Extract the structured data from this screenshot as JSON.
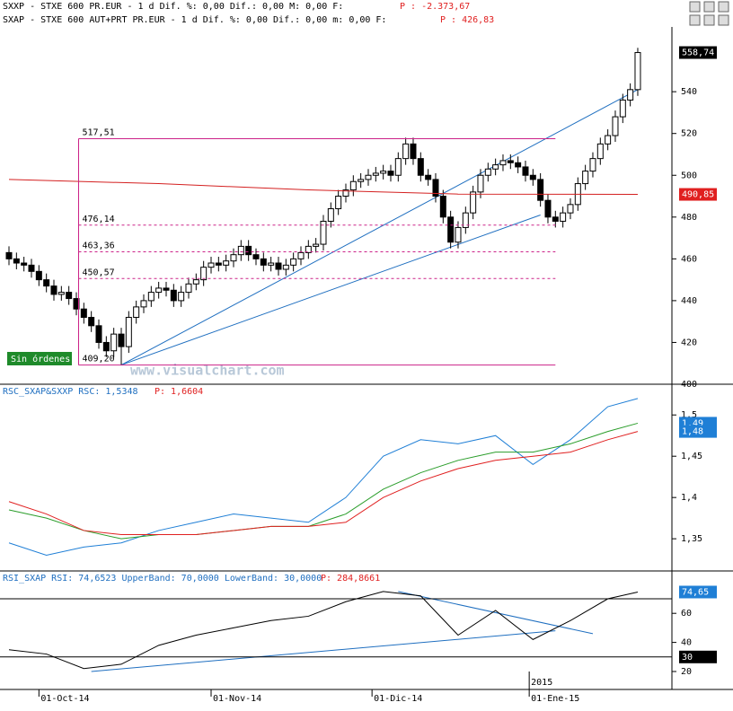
{
  "header": {
    "line1": "SXXP - STXE 600 PR.EUR -   1 d Dif. %: 0,00 Dif.: 0,00 M: 0,00 F:",
    "line1_p": "P : -2.373,67",
    "line2": "SXAP - STXE 600 AUT+PRT PR.EUR -   1 d Dif. %: 0,00 Dif.: 0,00 m: 0,00 F:",
    "line2_p": "P : 426,83"
  },
  "watermark": "www.visualchart.com",
  "status": "Sin órdenes",
  "chart_data": [
    {
      "type": "candlestick",
      "open": [
        463,
        460,
        458,
        457,
        454,
        450,
        447,
        443,
        444,
        441,
        436,
        432,
        428,
        420,
        416,
        424,
        418,
        432,
        437,
        440,
        444,
        446,
        445,
        440,
        444,
        448,
        450,
        456,
        458,
        457,
        459,
        462,
        466,
        462,
        460,
        457,
        458,
        455,
        457,
        460,
        463,
        466,
        467,
        478,
        484,
        490,
        493,
        497,
        498,
        500,
        501,
        502,
        500,
        508,
        515,
        508,
        500,
        498,
        490,
        480,
        468,
        475,
        482,
        492,
        500,
        503,
        505,
        507,
        506,
        504,
        500,
        498,
        488,
        480,
        478,
        482,
        486,
        496,
        502,
        508,
        515,
        519,
        528,
        536,
        541
      ],
      "high": [
        466,
        463,
        461,
        460,
        457,
        453,
        450,
        447,
        447,
        444,
        439,
        435,
        431,
        423,
        427,
        427,
        435,
        440,
        443,
        447,
        449,
        449,
        448,
        447,
        451,
        453,
        459,
        461,
        461,
        462,
        465,
        469,
        469,
        465,
        463,
        461,
        461,
        460,
        463,
        466,
        469,
        470,
        481,
        487,
        493,
        496,
        500,
        501,
        503,
        504,
        505,
        505,
        511,
        518,
        518,
        511,
        503,
        501,
        493,
        483,
        478,
        485,
        495,
        503,
        506,
        508,
        510,
        510,
        509,
        507,
        503,
        501,
        491,
        483,
        485,
        489,
        499,
        505,
        511,
        518,
        522,
        531,
        539,
        544,
        561
      ],
      "low": [
        457,
        455,
        454,
        451,
        447,
        444,
        440,
        440,
        438,
        433,
        429,
        425,
        417,
        413,
        413,
        409.2,
        415,
        429,
        434,
        437,
        441,
        442,
        437,
        437,
        441,
        445,
        447,
        453,
        454,
        454,
        456,
        459,
        459,
        457,
        454,
        454,
        452,
        452,
        454,
        457,
        460,
        463,
        464,
        475,
        481,
        487,
        490,
        494,
        495,
        497,
        498,
        497,
        497,
        505,
        505,
        497,
        495,
        487,
        477,
        465,
        465,
        472,
        479,
        489,
        497,
        500,
        502,
        503,
        501,
        497,
        495,
        485,
        477,
        475,
        475,
        479,
        483,
        493,
        499,
        505,
        512,
        516,
        525,
        533,
        538
      ],
      "close": [
        460,
        458,
        457,
        454,
        450,
        447,
        443,
        444,
        441,
        436,
        432,
        428,
        420,
        416,
        424,
        418,
        432,
        437,
        440,
        444,
        446,
        445,
        440,
        444,
        448,
        450,
        456,
        458,
        457,
        459,
        462,
        466,
        462,
        460,
        457,
        458,
        455,
        457,
        460,
        463,
        466,
        467,
        478,
        484,
        490,
        493,
        497,
        498,
        500,
        501,
        502,
        500,
        508,
        515,
        508,
        500,
        498,
        490,
        480,
        468,
        475,
        482,
        492,
        500,
        503,
        505,
        507,
        506,
        504,
        500,
        498,
        488,
        480,
        478,
        482,
        486,
        496,
        502,
        508,
        515,
        519,
        528,
        536,
        541,
        558.74
      ],
      "ylim": [
        400,
        571
      ],
      "yticks": [
        400,
        420,
        440,
        460,
        480,
        500,
        520,
        540
      ],
      "ma": {
        "x": [
          0,
          20,
          40,
          60,
          84
        ],
        "values": [
          498,
          496,
          493,
          491,
          490.85
        ],
        "color": "#d42020"
      },
      "trendlines": [
        {
          "x": [
            15,
            84
          ],
          "y": [
            409.2,
            541
          ],
          "color": "#1f6fc0"
        },
        {
          "x": [
            15,
            71
          ],
          "y": [
            409.2,
            481
          ],
          "color": "#1f6fc0"
        }
      ],
      "box": {
        "x": [
          9.3,
          73
        ],
        "color": "#cc2288"
      },
      "levels": [
        {
          "value": 517.51,
          "label": "517,51",
          "style": "solid"
        },
        {
          "value": 476.14,
          "label": "476,14",
          "style": "dashed"
        },
        {
          "value": 463.36,
          "label": "463,36",
          "style": "dashed"
        },
        {
          "value": 450.57,
          "label": "450,57",
          "style": "dashed"
        },
        {
          "value": 409.2,
          "label": "409,20",
          "style": "solid"
        }
      ],
      "markers": [
        {
          "value": 558.74,
          "label": "558,74",
          "color": "#000000"
        },
        {
          "value": 490.85,
          "label": "490,85",
          "color": "#e02020"
        }
      ]
    },
    {
      "type": "line",
      "title": "RSC_SXAP&SXXP RSC: 1,5348",
      "title_p": "P: 1,6604",
      "x": [
        0,
        5,
        10,
        15,
        20,
        25,
        30,
        35,
        40,
        45,
        50,
        55,
        60,
        65,
        70,
        75,
        80,
        84
      ],
      "series": [
        {
          "color": "#1f7fd6",
          "values": [
            1.345,
            1.33,
            1.34,
            1.345,
            1.36,
            1.37,
            1.38,
            1.375,
            1.37,
            1.4,
            1.45,
            1.47,
            1.465,
            1.475,
            1.44,
            1.47,
            1.51,
            1.52
          ]
        },
        {
          "color": "#2a9d2a",
          "values": [
            1.385,
            1.375,
            1.36,
            1.35,
            1.355,
            1.355,
            1.36,
            1.365,
            1.365,
            1.38,
            1.41,
            1.43,
            1.445,
            1.455,
            1.455,
            1.465,
            1.48,
            1.49
          ]
        },
        {
          "color": "#e02020",
          "values": [
            1.395,
            1.38,
            1.36,
            1.355,
            1.355,
            1.355,
            1.36,
            1.365,
            1.365,
            1.37,
            1.4,
            1.42,
            1.435,
            1.445,
            1.45,
            1.455,
            1.47,
            1.48
          ]
        }
      ],
      "ylim": [
        1.311,
        1.522
      ],
      "yticks": [
        {
          "value": 1.35,
          "label": "1,35"
        },
        {
          "value": 1.4,
          "label": "1,4"
        },
        {
          "value": 1.45,
          "label": "1,45"
        },
        {
          "value": 1.5,
          "label": "1,5"
        }
      ],
      "markers": [
        {
          "value": 1.49,
          "label": "1,49",
          "color": "#1f7fd6"
        },
        {
          "value": 1.48,
          "label": "1,48",
          "color": "#1f7fd6"
        }
      ]
    },
    {
      "type": "line",
      "title": "RSI_SXAP RSI: 74,6523 UpperBand: 70,0000 LowerBand: 30,0000",
      "title_p": "P: 284,8661",
      "x": [
        0,
        5,
        10,
        15,
        20,
        25,
        30,
        35,
        40,
        45,
        50,
        55,
        60,
        65,
        70,
        75,
        80,
        84
      ],
      "series": [
        {
          "color": "#000000",
          "values": [
            35,
            32,
            22,
            25,
            38,
            45,
            50,
            55,
            58,
            68,
            75,
            72,
            45,
            62,
            42,
            55,
            70,
            74.65
          ]
        }
      ],
      "bands": [
        70,
        30
      ],
      "trendlines": [
        {
          "x": [
            11,
            73
          ],
          "y": [
            20,
            48
          ],
          "color": "#1f6fc0"
        },
        {
          "x": [
            52,
            78
          ],
          "y": [
            75,
            46
          ],
          "color": "#1f6fc0"
        }
      ],
      "ylim": [
        7.65,
        80.5
      ],
      "yticks": [
        20,
        40,
        60
      ],
      "markers": [
        {
          "value": 74.65,
          "label": "74,65",
          "color": "#1f7fd6"
        },
        {
          "value": 30,
          "label": "30",
          "color": "#000000"
        }
      ],
      "xlabels": [
        {
          "index": 4,
          "label": "01-Oct-14"
        },
        {
          "index": 27,
          "label": "01-Nov-14"
        },
        {
          "index": 48.5,
          "label": "01-Dic-14"
        },
        {
          "index": 69.5,
          "label": "01-Ene-15"
        }
      ],
      "year_label": {
        "index": 69.5,
        "label": "2015"
      }
    }
  ]
}
